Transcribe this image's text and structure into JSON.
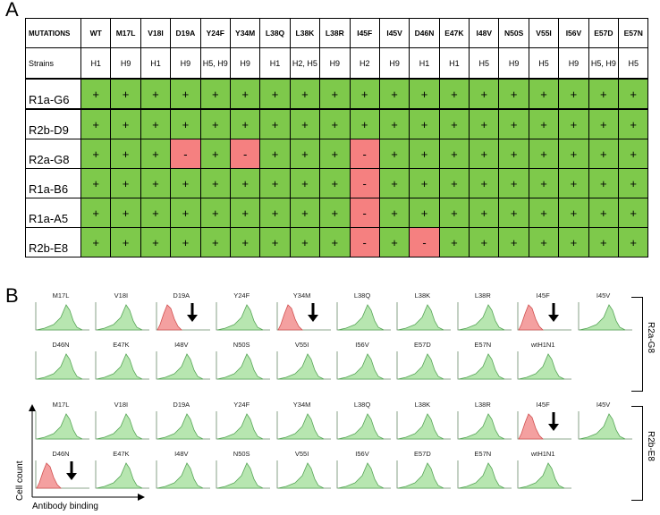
{
  "panels": {
    "a": "A",
    "b": "B"
  },
  "table": {
    "header_label": "MUTATIONS",
    "strains_label": "Strains",
    "columns": [
      "WT",
      "M17L",
      "V18I",
      "D19A",
      "Y24F",
      "Y34M",
      "L38Q",
      "L38K",
      "L38R",
      "I45F",
      "I45V",
      "D46N",
      "E47K",
      "I48V",
      "N50S",
      "V55I",
      "I56V",
      "E57D",
      "E57N"
    ],
    "strains": [
      "H1",
      "H9",
      "H1",
      "H9",
      "H5, H9",
      "H9",
      "H1",
      "H2, H5",
      "H9",
      "H2",
      "H9",
      "H1",
      "H1",
      "H5",
      "H9",
      "H5",
      "H9",
      "H5, H9",
      "H5"
    ],
    "rows": [
      {
        "label": "R1a-G6",
        "values": [
          "+",
          "+",
          "+",
          "+",
          "+",
          "+",
          "+",
          "+",
          "+",
          "+",
          "+",
          "+",
          "+",
          "+",
          "+",
          "+",
          "+",
          "+",
          "+"
        ]
      },
      {
        "label": "R2b-D9",
        "values": [
          "+",
          "+",
          "+",
          "+",
          "+",
          "+",
          "+",
          "+",
          "+",
          "+",
          "+",
          "+",
          "+",
          "+",
          "+",
          "+",
          "+",
          "+",
          "+"
        ]
      },
      {
        "label": "R2a-G8",
        "values": [
          "+",
          "+",
          "+",
          "-",
          "+",
          "-",
          "+",
          "+",
          "+",
          "-",
          "+",
          "+",
          "+",
          "+",
          "+",
          "+",
          "+",
          "+",
          "+"
        ]
      },
      {
        "label": "R1a-B6",
        "values": [
          "+",
          "+",
          "+",
          "+",
          "+",
          "+",
          "+",
          "+",
          "+",
          "-",
          "+",
          "+",
          "+",
          "+",
          "+",
          "+",
          "+",
          "+",
          "+"
        ]
      },
      {
        "label": "R1a-A5",
        "values": [
          "+",
          "+",
          "+",
          "+",
          "+",
          "+",
          "+",
          "+",
          "+",
          "-",
          "+",
          "+",
          "+",
          "+",
          "+",
          "+",
          "+",
          "+",
          "+"
        ]
      },
      {
        "label": "R2b-E8",
        "values": [
          "+",
          "+",
          "+",
          "+",
          "+",
          "+",
          "+",
          "+",
          "+",
          "-",
          "+",
          "-",
          "+",
          "+",
          "+",
          "+",
          "+",
          "+",
          "+"
        ]
      }
    ],
    "colors": {
      "positive": "#7ec94b",
      "negative": "#f58080"
    }
  },
  "flow": {
    "groups": [
      {
        "label": "R2a-G8",
        "row1": [
          "M17L",
          "V18I",
          "D19A",
          "Y24F",
          "Y34M",
          "L38Q",
          "L38K",
          "L38R",
          "I45F",
          "I45V"
        ],
        "row2": [
          "D46N",
          "E47K",
          "I48V",
          "N50S",
          "V55I",
          "I56V",
          "E57D",
          "E57N",
          "wtH1N1"
        ],
        "negative": [
          "D19A",
          "Y34M",
          "I45F"
        ]
      },
      {
        "label": "R2b-E8",
        "row1": [
          "M17L",
          "V18I",
          "D19A",
          "Y24F",
          "Y34M",
          "L38Q",
          "L38K",
          "L38R",
          "I45F",
          "I45V"
        ],
        "row2": [
          "D46N",
          "E47K",
          "I48V",
          "N50S",
          "V55I",
          "I56V",
          "E57D",
          "E57N",
          "wtH1N1"
        ],
        "negative": [
          "I45F",
          "D46N"
        ]
      }
    ],
    "y_axis_label": "Cell count",
    "x_axis_label": "Antibody binding"
  }
}
